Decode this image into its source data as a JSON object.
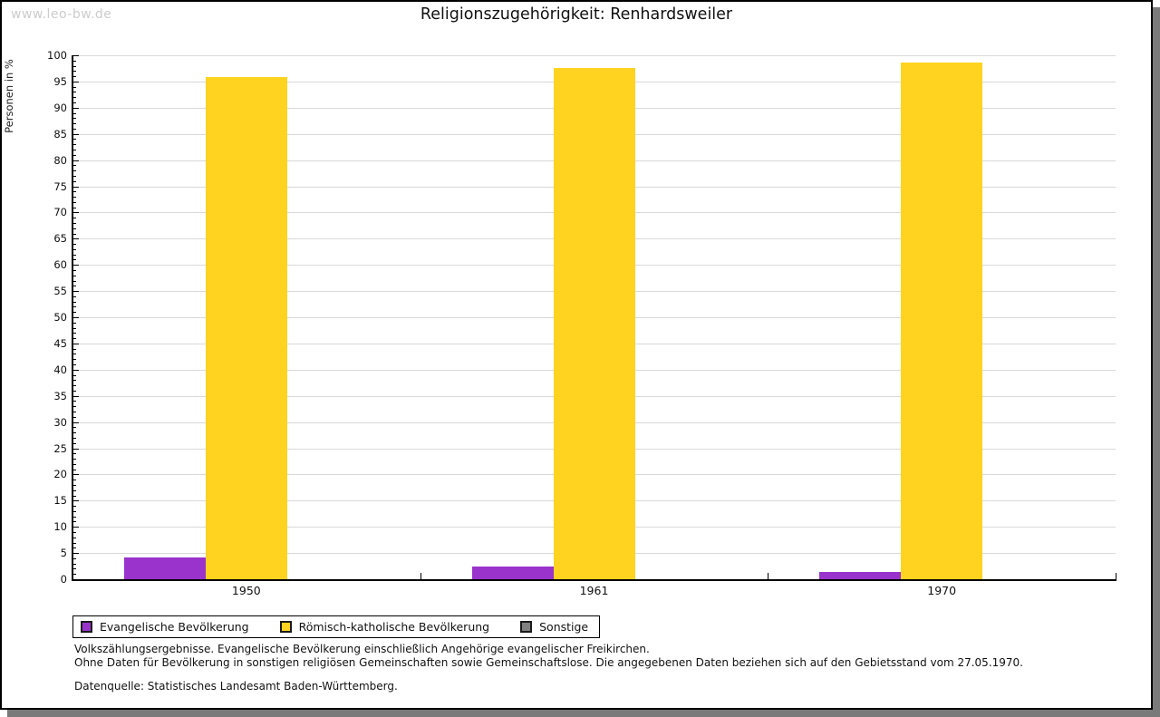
{
  "watermark": "www.leo-bw.de",
  "header": {
    "title": "Religionszugehörigkeit: Renhardsweiler"
  },
  "chart_data": {
    "type": "bar",
    "title": "Religionszugehörigkeit: Renhardsweiler",
    "xlabel": "",
    "ylabel": "Personen in %",
    "ylim": [
      0,
      100
    ],
    "y_major_step": 5,
    "y_minor_step": 1,
    "grid": true,
    "legend_position": "bottom",
    "categories": [
      "1950",
      "1961",
      "1970"
    ],
    "series": [
      {
        "name": "Evangelische Bevölkerung",
        "color": "#9933CC",
        "values": [
          4.2,
          2.4,
          1.3
        ]
      },
      {
        "name": "Römisch-katholische Bevölkerung",
        "color": "#FFD320",
        "values": [
          95.8,
          97.6,
          98.7
        ]
      },
      {
        "name": "Sonstige",
        "color": "#808080",
        "values": [
          0,
          0,
          0
        ]
      }
    ]
  },
  "footnotes": [
    "Volkszählungsergebnisse. Evangelische Bevölkerung einschließlich Angehörige evangelischer Freikirchen.",
    "Ohne Daten für Bevölkerung in sonstigen religiösen Gemeinschaften sowie Gemeinschaftslose. Die angegebenen Daten beziehen sich auf den Gebietsstand vom 27.05.1970."
  ],
  "source": "Datenquelle: Statistisches Landesamt Baden-Württemberg.",
  "colors": {
    "evangelisch": "#9933CC",
    "katholisch": "#FFD320",
    "sonstige": "#808080",
    "gridline": "#d9d9d9",
    "axis": "#000000",
    "watermark": "#cccccc",
    "frame_shadow": "#7a7a7a"
  }
}
